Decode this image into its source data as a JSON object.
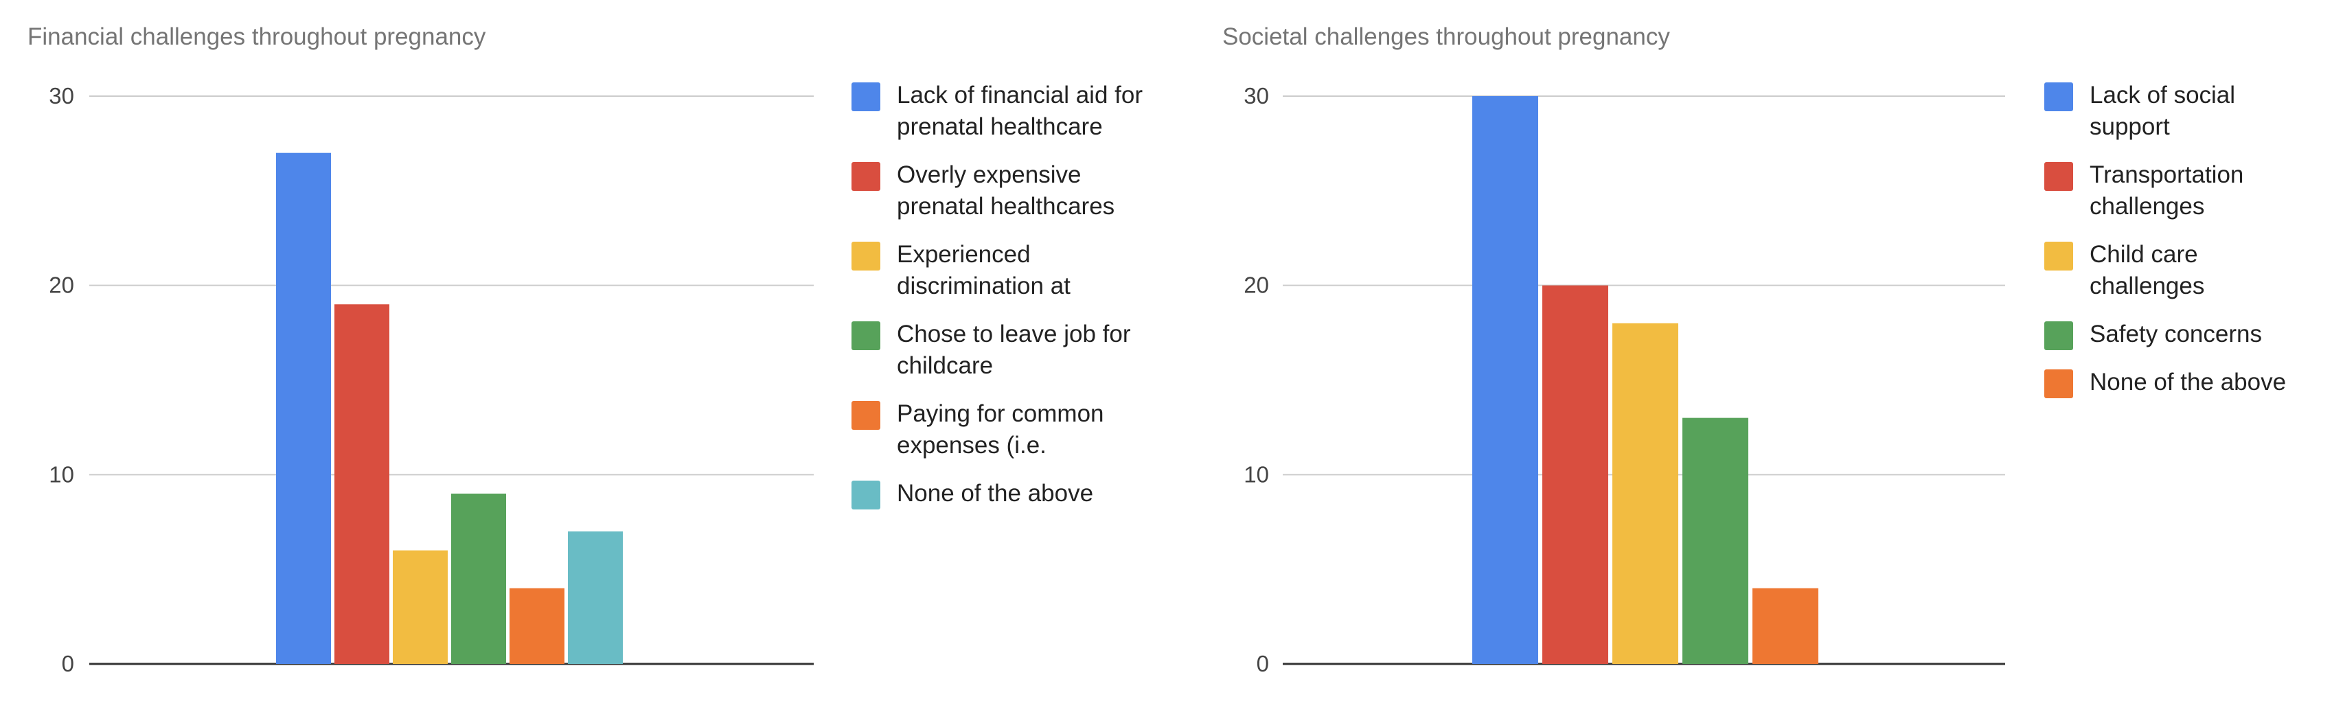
{
  "chart_data": [
    {
      "type": "bar",
      "title": "Financial challenges throughout pregnancy",
      "ylim": [
        0,
        30
      ],
      "yticks": [
        "0",
        "10",
        "20",
        "30"
      ],
      "grid": true,
      "legend_position": "right",
      "series": [
        {
          "name": "Lack of financial aid for prenatal healthcare",
          "value": 27,
          "color": "#4e86ea"
        },
        {
          "name": "Overly expensive prenatal healthcares",
          "value": 19,
          "color": "#d94e3f"
        },
        {
          "name": "Experienced discrimination at",
          "value": 6,
          "color": "#f2bc41"
        },
        {
          "name": "Chose to leave job for childcare",
          "value": 9,
          "color": "#57a25a"
        },
        {
          "name": "Paying for common expenses (i.e.",
          "value": 4,
          "color": "#ee7732"
        },
        {
          "name": "None of the above",
          "value": 7,
          "color": "#69bcc5"
        }
      ]
    },
    {
      "type": "bar",
      "title": "Societal challenges throughout pregnancy",
      "ylim": [
        0,
        30
      ],
      "yticks": [
        "0",
        "10",
        "20",
        "30"
      ],
      "grid": true,
      "legend_position": "right",
      "series": [
        {
          "name": "Lack of social support",
          "value": 30,
          "color": "#4e86ea"
        },
        {
          "name": "Transportation challenges",
          "value": 20,
          "color": "#d94e3f"
        },
        {
          "name": "Child care challenges",
          "value": 18,
          "color": "#f2bc41"
        },
        {
          "name": "Safety concerns",
          "value": 13,
          "color": "#57a25a"
        },
        {
          "name": "None of the above",
          "value": 4,
          "color": "#ee7732"
        }
      ]
    }
  ]
}
